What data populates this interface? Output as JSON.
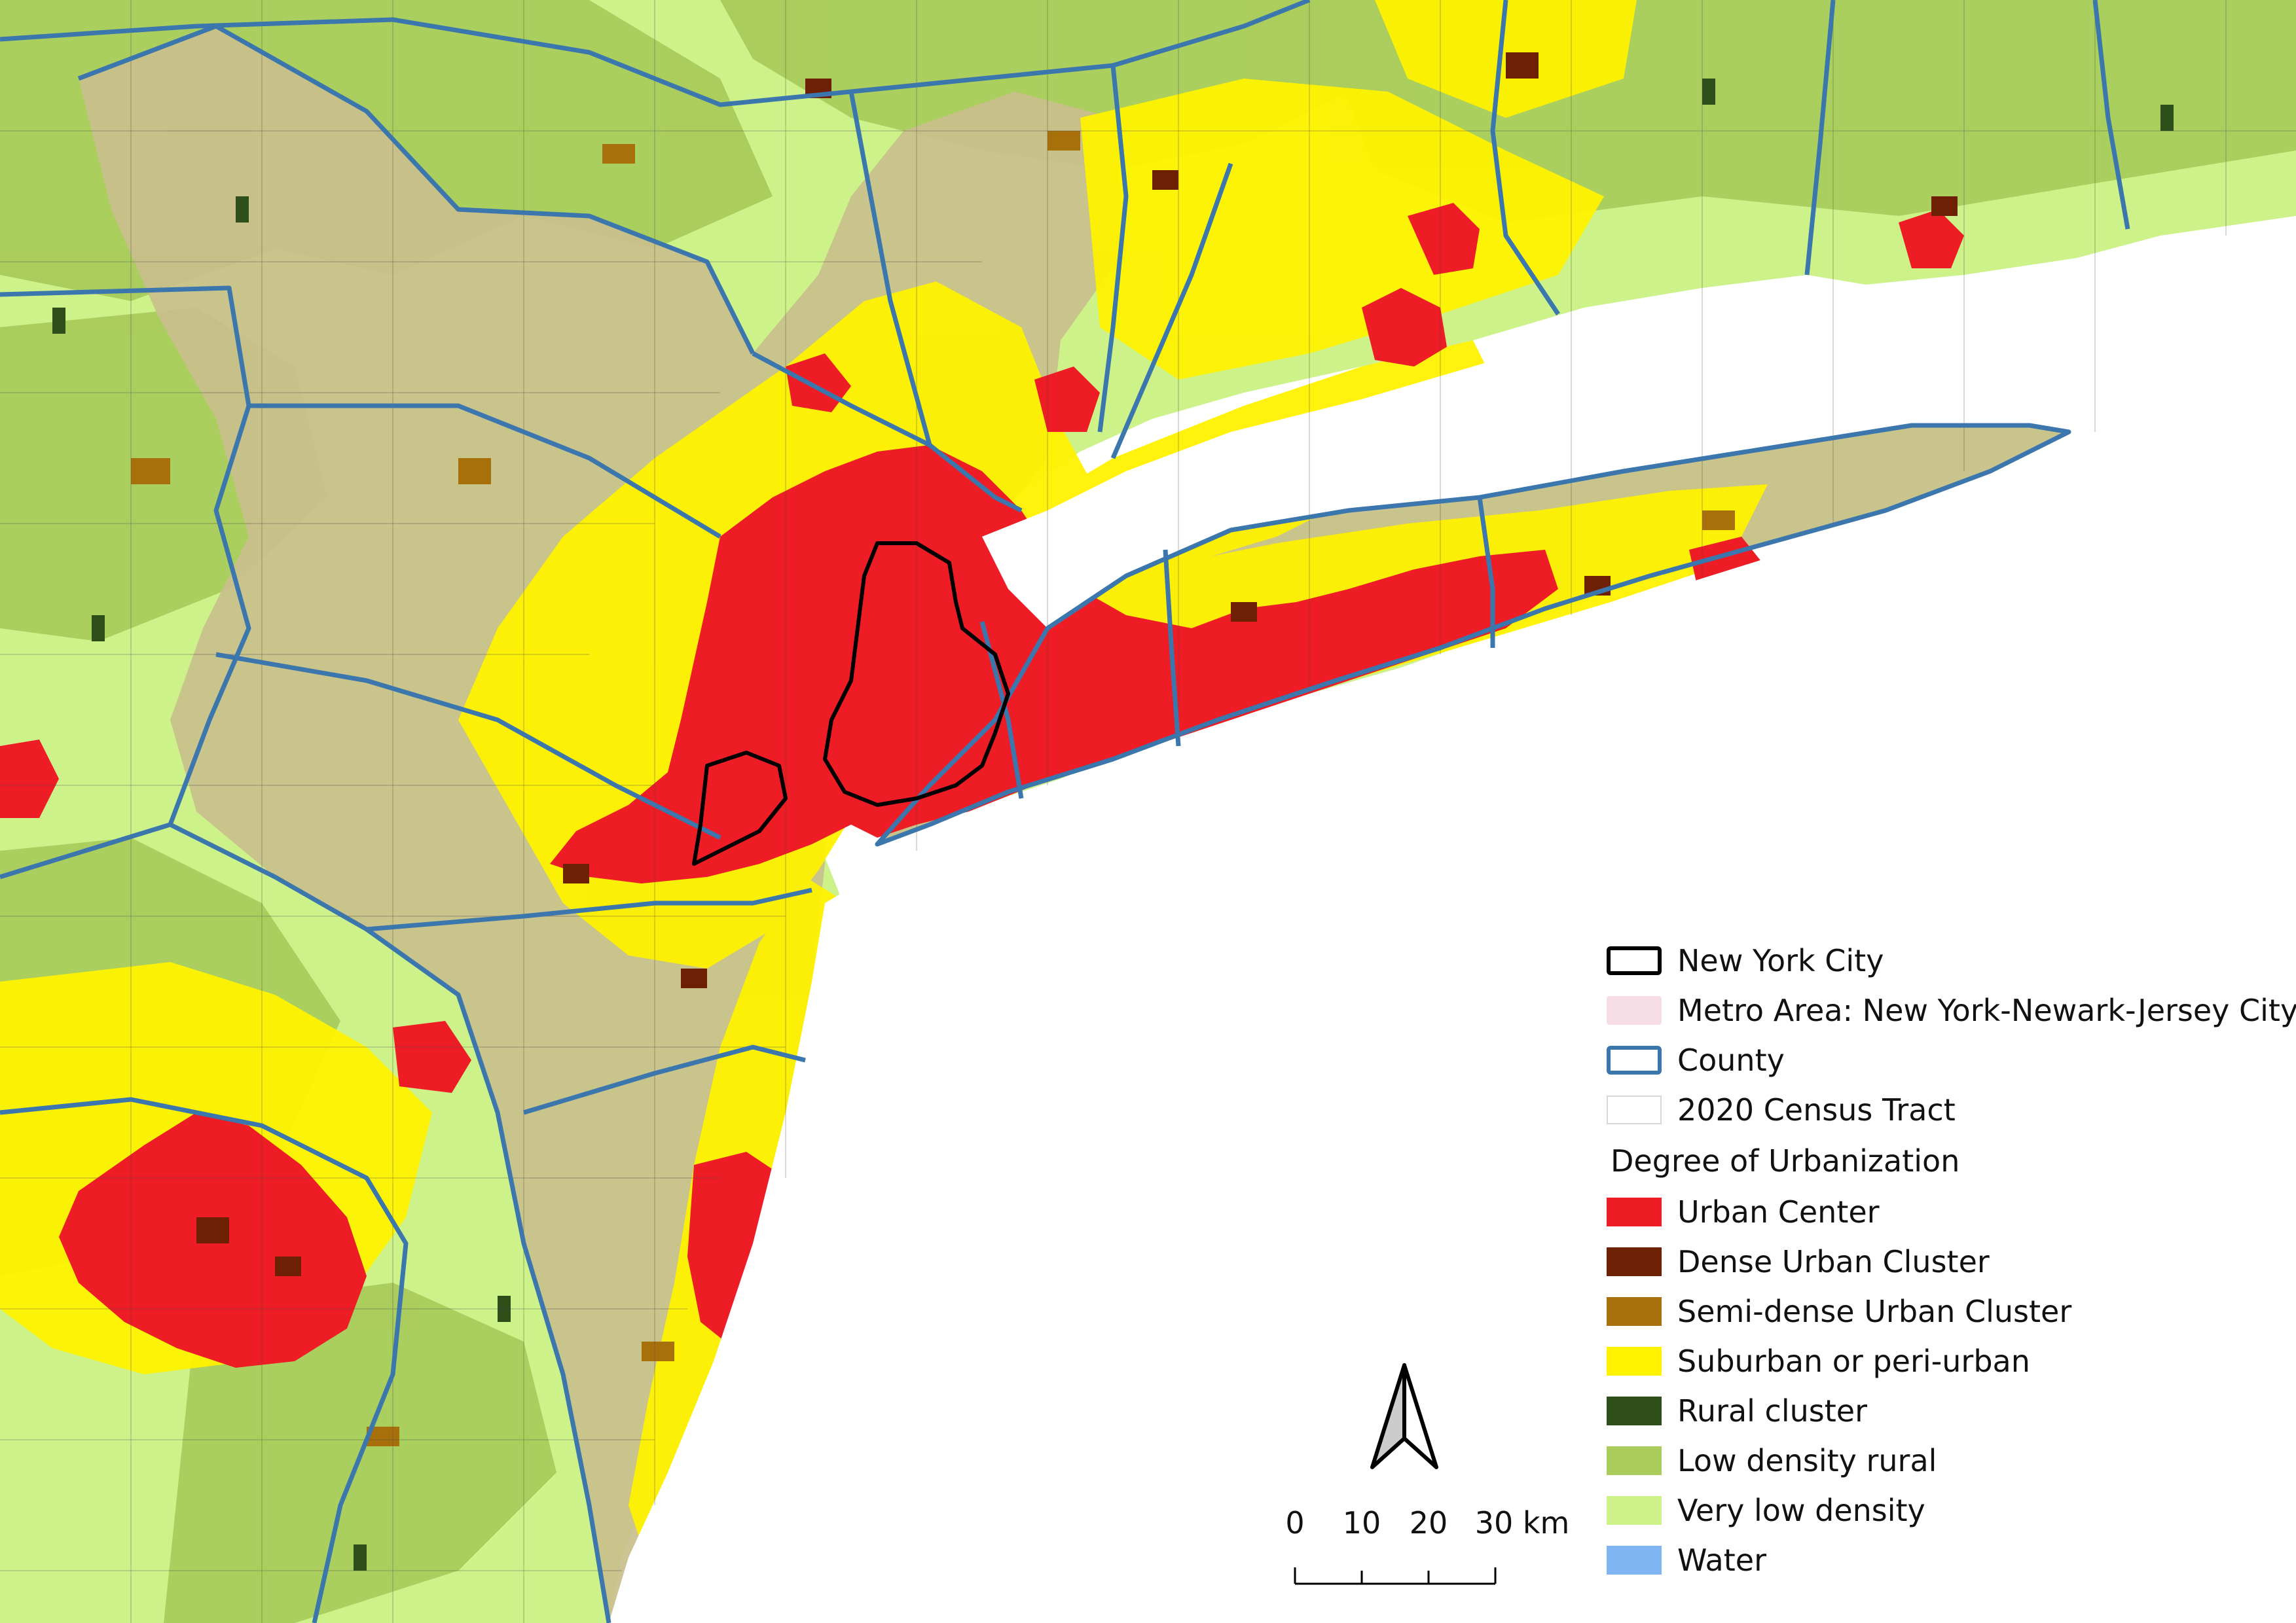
{
  "legend": {
    "items": [
      {
        "label": "New York City",
        "swatch": "outline-black"
      },
      {
        "label": "Metro Area: New York-Newark-Jersey City",
        "swatch": "fill",
        "color": "#f6dce4"
      },
      {
        "label": "County",
        "swatch": "outline-blue",
        "color": "#3b76ad"
      },
      {
        "label": "2020 Census Tract",
        "swatch": "outline-thin",
        "color": "#d8d8d8"
      }
    ],
    "urbanization_title": "Degree of Urbanization",
    "classes": [
      {
        "label": "Urban Center",
        "color": "#ee1c25"
      },
      {
        "label": "Dense Urban Cluster",
        "color": "#6e2005"
      },
      {
        "label": "Semi-dense Urban Cluster",
        "color": "#a8700a"
      },
      {
        "label": "Suburban or peri-urban",
        "color": "#fff200"
      },
      {
        "label": "Rural cluster",
        "color": "#2e4e1a"
      },
      {
        "label": "Low density rural",
        "color": "#a9cc5c"
      },
      {
        "label": "Very low density",
        "color": "#cdf28a"
      },
      {
        "label": "Water",
        "color": "#7fb5f0"
      }
    ]
  },
  "scale_bar": {
    "ticks": [
      "0",
      "10",
      "20",
      "30 km"
    ]
  },
  "colors": {
    "metro_overlay": "#c9bf8c",
    "county_border": "#3b76ad",
    "nyc_border": "#000000",
    "tract_lines": "#4a4a4a",
    "sea": "#ffffff"
  }
}
